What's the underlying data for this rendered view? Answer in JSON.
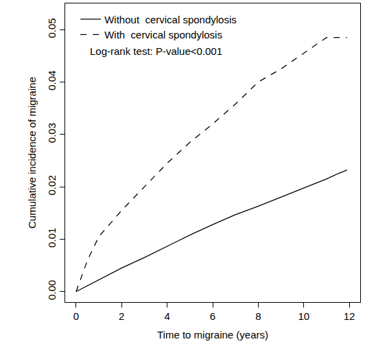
{
  "chart_data": {
    "type": "line",
    "x_label": "Time to migraine (years)",
    "y_label": "Cumulative incidence of migraine",
    "annotation": "Log-rank test: P-value<0.001",
    "x": [
      0,
      0.5,
      1,
      1.5,
      2,
      3,
      4,
      5,
      6,
      7,
      8,
      9,
      10,
      11,
      11.5,
      11.9
    ],
    "series": [
      {
        "name": "Without  cervical spondylosis",
        "color": "#000000",
        "line_style": "solid",
        "values": [
          0,
          0.0011,
          0.0022,
          0.0033,
          0.0045,
          0.0065,
          0.0087,
          0.0108,
          0.0128,
          0.0147,
          0.0163,
          0.018,
          0.0198,
          0.0215,
          0.0225,
          0.0232
        ]
      },
      {
        "name": "With  cervical spondylosis",
        "color": "#000000",
        "line_style": "dash",
        "values": [
          0,
          0.006,
          0.0105,
          0.013,
          0.0155,
          0.02,
          0.0245,
          0.0285,
          0.032,
          0.0358,
          0.04,
          0.0425,
          0.0455,
          0.0485,
          0.0485,
          0.0485
        ]
      }
    ],
    "xlim": [
      -0.48,
      12.48
    ],
    "xticks": [
      0,
      2,
      4,
      6,
      8,
      10,
      12
    ],
    "ylim": [
      -0.002,
      0.055
    ],
    "yticks": [
      {
        "value": 0,
        "label": "0.00"
      },
      {
        "value": 0.01,
        "label": "0.01"
      },
      {
        "value": 0.02,
        "label": "0.02"
      },
      {
        "value": 0.03,
        "label": "0.03"
      },
      {
        "value": 0.04,
        "label": "0.04"
      },
      {
        "value": 0.05,
        "label": "0.05"
      }
    ],
    "grid": false,
    "legend": "top left"
  }
}
